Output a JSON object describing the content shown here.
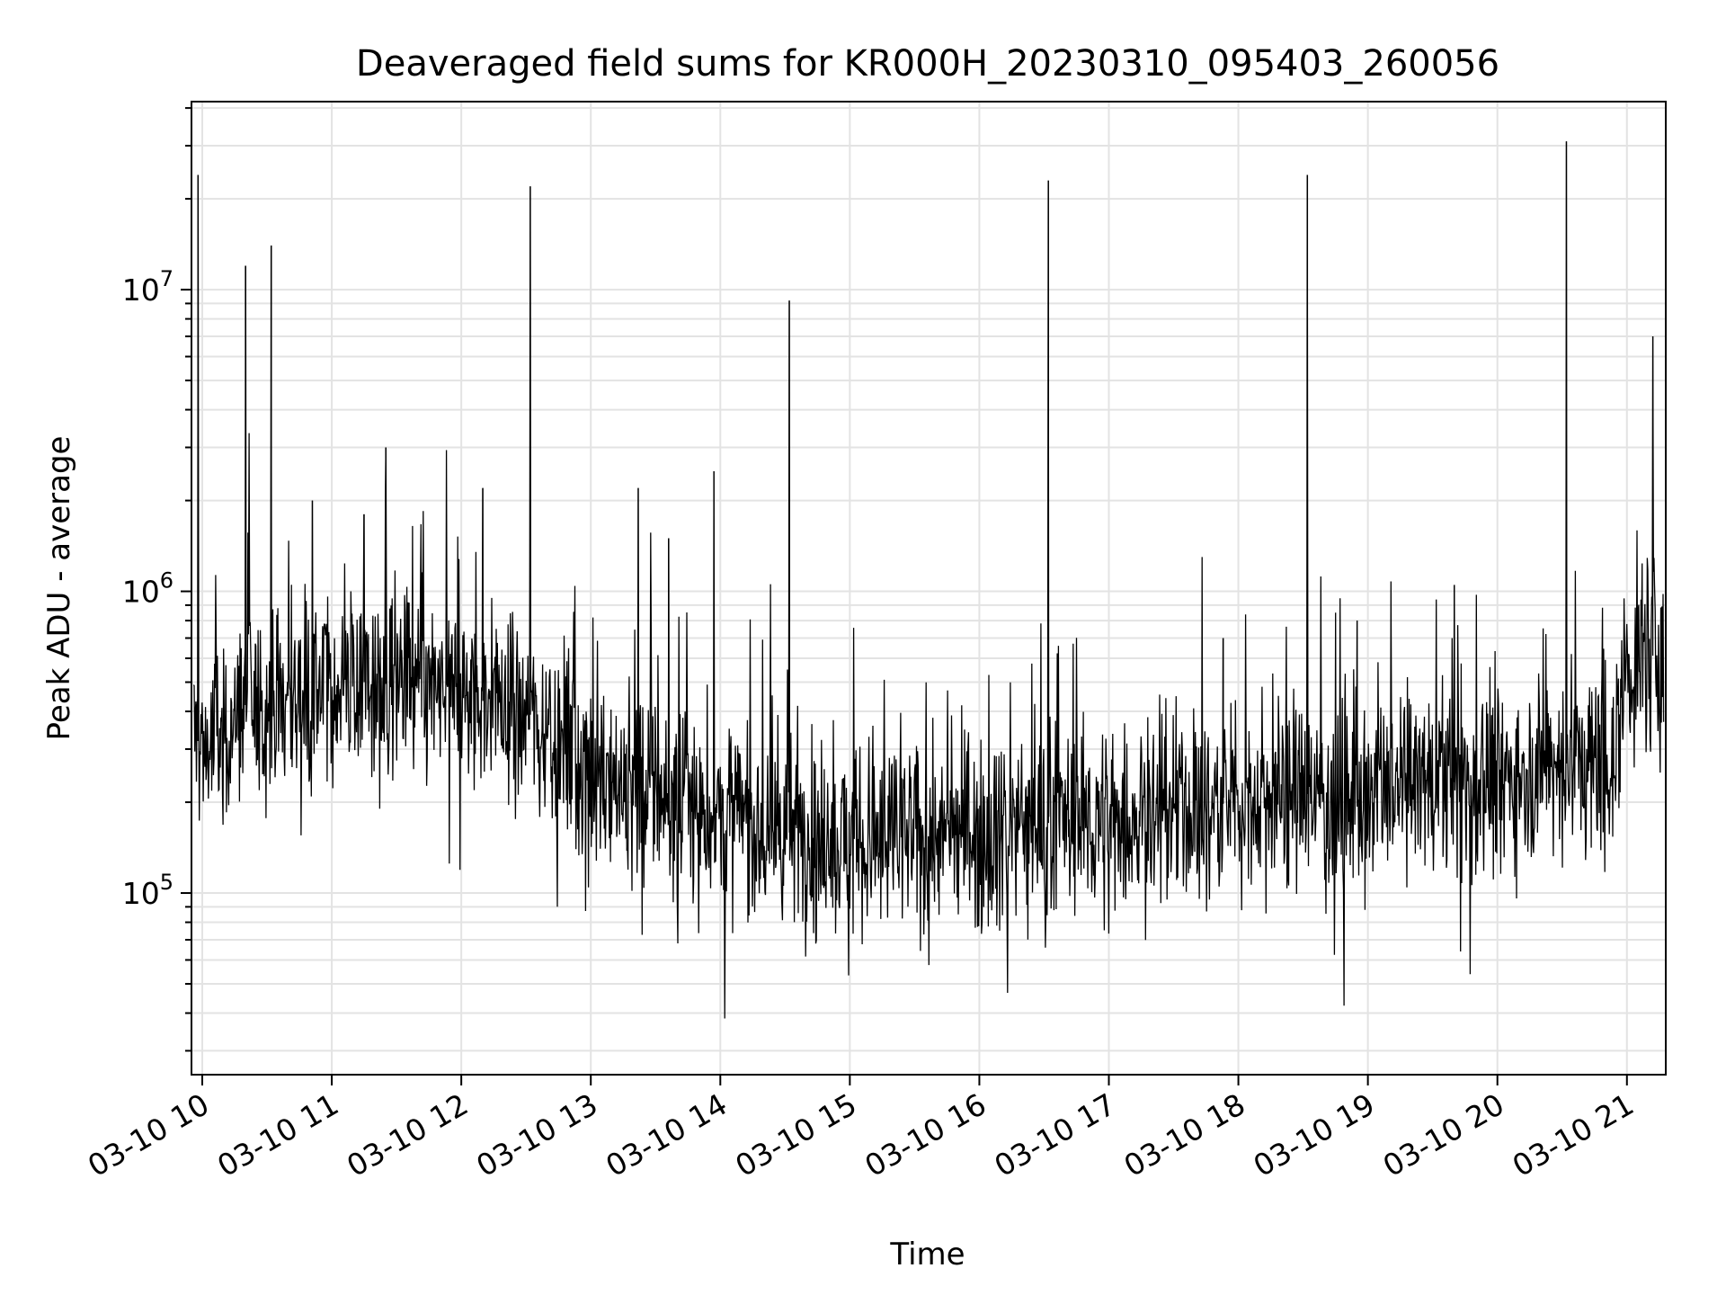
{
  "chart_data": {
    "type": "line",
    "title": "Deaveraged field sums for KR000H_20230310_095403_260056",
    "xlabel": "Time",
    "ylabel": "Peak ADU - average",
    "yscale": "log",
    "grid": true,
    "line_color": "#000000",
    "xlim": [
      "03-10 09:55",
      "03-10 21:18"
    ],
    "ylim": [
      25000,
      42000000
    ],
    "x_ticks": [
      "03-10 10",
      "03-10 11",
      "03-10 12",
      "03-10 13",
      "03-10 14",
      "03-10 15",
      "03-10 16",
      "03-10 17",
      "03-10 18",
      "03-10 19",
      "03-10 20",
      "03-10 21"
    ],
    "y_ticks": [
      {
        "value": 100000,
        "mantissa": "10",
        "exponent": "5"
      },
      {
        "value": 1000000,
        "mantissa": "10",
        "exponent": "6"
      },
      {
        "value": 10000000,
        "mantissa": "10",
        "exponent": "7"
      }
    ],
    "series": [
      {
        "values_approx": "sampled envelope of a noisy series",
        "x": [
          "03-10 09:55",
          "03-10 10:00",
          "03-10 10:10",
          "03-10 10:20",
          "03-10 10:30",
          "03-10 10:45",
          "03-10 11:00",
          "03-10 11:15",
          "03-10 11:30",
          "03-10 11:45",
          "03-10 12:00",
          "03-10 12:15",
          "03-10 12:30",
          "03-10 12:45",
          "03-10 13:00",
          "03-10 13:15",
          "03-10 13:30",
          "03-10 13:45",
          "03-10 14:00",
          "03-10 14:15",
          "03-10 14:30",
          "03-10 14:45",
          "03-10 15:00",
          "03-10 15:15",
          "03-10 15:30",
          "03-10 15:45",
          "03-10 16:00",
          "03-10 16:15",
          "03-10 16:30",
          "03-10 16:45",
          "03-10 17:00",
          "03-10 17:15",
          "03-10 17:30",
          "03-10 17:45",
          "03-10 18:00",
          "03-10 18:15",
          "03-10 18:30",
          "03-10 18:45",
          "03-10 19:00",
          "03-10 19:15",
          "03-10 19:30",
          "03-10 19:45",
          "03-10 20:00",
          "03-10 20:15",
          "03-10 20:30",
          "03-10 20:45",
          "03-10 20:55",
          "03-10 21:00",
          "03-10 21:10",
          "03-10 21:18"
        ],
        "y": [
          350000,
          300000,
          330000,
          420000,
          400000,
          450000,
          480000,
          500000,
          490000,
          470000,
          440000,
          430000,
          400000,
          330000,
          260000,
          230000,
          210000,
          190000,
          180000,
          170000,
          160000,
          150000,
          150000,
          145000,
          150000,
          155000,
          160000,
          165000,
          170000,
          175000,
          170000,
          180000,
          185000,
          195000,
          200000,
          210000,
          215000,
          200000,
          190000,
          220000,
          240000,
          230000,
          240000,
          260000,
          270000,
          260000,
          300000,
          550000,
          600000,
          650000
        ]
      }
    ],
    "spikes": [
      {
        "x": "03-10 09:58",
        "y": 24000000
      },
      {
        "x": "03-10 10:20",
        "y": 12000000
      },
      {
        "x": "03-10 10:32",
        "y": 14000000
      },
      {
        "x": "03-10 10:51",
        "y": 2000000
      },
      {
        "x": "03-10 11:15",
        "y": 1800000
      },
      {
        "x": "03-10 11:25",
        "y": 3000000
      },
      {
        "x": "03-10 12:10",
        "y": 2200000
      },
      {
        "x": "03-10 12:32",
        "y": 22000000
      },
      {
        "x": "03-10 13:22",
        "y": 2200000
      },
      {
        "x": "03-10 13:36",
        "y": 1500000
      },
      {
        "x": "03-10 13:57",
        "y": 2500000
      },
      {
        "x": "03-10 14:32",
        "y": 9200000
      },
      {
        "x": "03-10 16:32",
        "y": 23000000
      },
      {
        "x": "03-10 17:53",
        "y": 700000
      },
      {
        "x": "03-10 18:32",
        "y": 24000000
      },
      {
        "x": "03-10 18:55",
        "y": 800000
      },
      {
        "x": "03-10 19:40",
        "y": 1050000
      },
      {
        "x": "03-10 20:32",
        "y": 31000000
      },
      {
        "x": "03-10 21:12",
        "y": 7000000
      }
    ]
  }
}
